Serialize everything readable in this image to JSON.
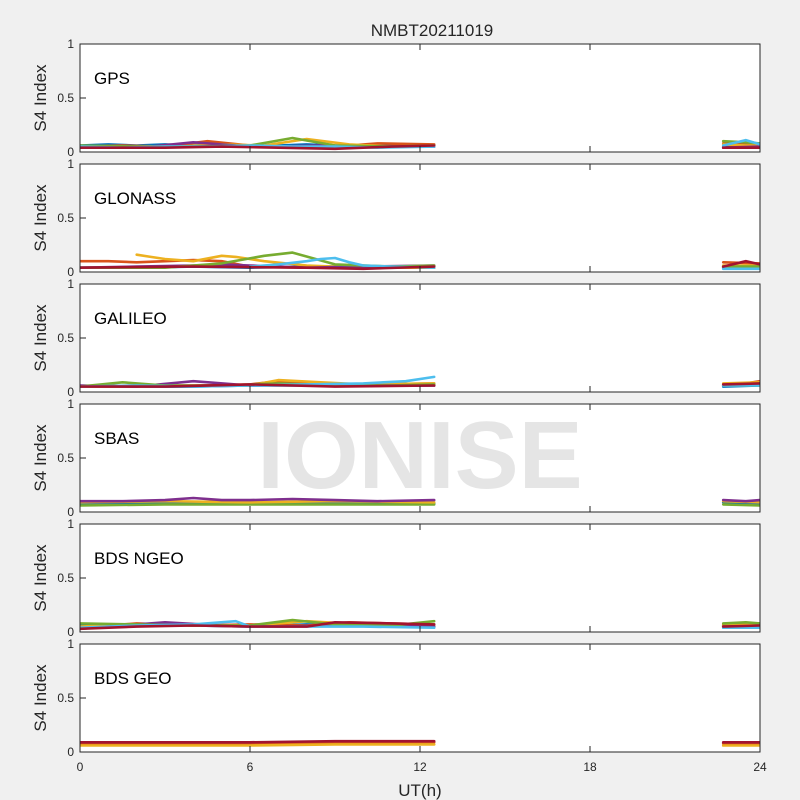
{
  "chart_data": {
    "type": "line",
    "title": "NMBT20211019",
    "xlabel": "UT(h)",
    "ylabel": "S4 Index",
    "xlim": [
      0,
      24
    ],
    "ylim": [
      0,
      1
    ],
    "xticks": [
      "0",
      "6",
      "12",
      "18",
      "24"
    ],
    "yticks": [
      "0",
      "0.5",
      "1"
    ],
    "watermark": "IONISE",
    "data_gap_hours": [
      12.5,
      22.7
    ],
    "panels": [
      {
        "label": "GPS",
        "series": [
          {
            "color": "#0072BD",
            "x": [
              0,
              1,
              2,
              3,
              4,
              5,
              6,
              7,
              8,
              9,
              10,
              11,
              12.5,
              22.7,
              23.5,
              24
            ],
            "y": [
              0.06,
              0.07,
              0.06,
              0.07,
              0.06,
              0.07,
              0.05,
              0.06,
              0.07,
              0.06,
              0.06,
              0.07,
              0.06,
              0.05,
              0.06,
              0.05
            ]
          },
          {
            "color": "#D95319",
            "x": [
              0,
              1.5,
              3,
              4.5,
              6,
              7.5,
              9,
              10.5,
              12.5,
              22.7,
              23.5,
              24
            ],
            "y": [
              0.05,
              0.06,
              0.05,
              0.1,
              0.06,
              0.05,
              0.05,
              0.08,
              0.07,
              0.08,
              0.07,
              0.06
            ]
          },
          {
            "color": "#EDB120",
            "x": [
              0,
              2,
              3.5,
              5,
              6.5,
              8,
              9.5,
              11,
              12.5,
              22.7,
              23.5,
              24
            ],
            "y": [
              0.04,
              0.05,
              0.05,
              0.07,
              0.06,
              0.12,
              0.07,
              0.05,
              0.06,
              0.07,
              0.06,
              0.06
            ]
          },
          {
            "color": "#7E2F8E",
            "x": [
              0,
              2.5,
              4,
              5.5,
              7,
              8.5,
              10,
              12.5,
              22.7,
              24
            ],
            "y": [
              0.05,
              0.05,
              0.09,
              0.06,
              0.05,
              0.06,
              0.05,
              0.05,
              0.04,
              0.05
            ]
          },
          {
            "color": "#77AC30",
            "x": [
              0,
              2,
              4,
              6,
              7.5,
              9,
              11,
              12.5,
              22.7,
              23.5,
              24
            ],
            "y": [
              0.06,
              0.05,
              0.05,
              0.06,
              0.13,
              0.06,
              0.05,
              0.06,
              0.1,
              0.09,
              0.08
            ]
          },
          {
            "color": "#4DBEEE",
            "x": [
              0,
              1.5,
              3,
              4.5,
              6,
              7.5,
              9,
              10.5,
              12.5,
              22.7,
              23.5,
              24
            ],
            "y": [
              0.05,
              0.04,
              0.05,
              0.05,
              0.06,
              0.05,
              0.05,
              0.04,
              0.05,
              0.06,
              0.11,
              0.07
            ]
          },
          {
            "color": "#A2142F",
            "x": [
              0,
              3,
              5,
              7,
              9,
              11,
              12.5,
              22.7,
              24
            ],
            "y": [
              0.04,
              0.04,
              0.05,
              0.04,
              0.03,
              0.05,
              0.06,
              0.04,
              0.04
            ]
          }
        ]
      },
      {
        "label": "GLONASS",
        "series": [
          {
            "color": "#0072BD",
            "x": [
              0,
              2,
              4,
              6,
              8,
              10,
              12.5,
              22.7,
              24
            ],
            "y": [
              0.04,
              0.04,
              0.05,
              0.04,
              0.05,
              0.05,
              0.04,
              0.04,
              0.05
            ]
          },
          {
            "color": "#D95319",
            "x": [
              0,
              1,
              2,
              3,
              4,
              5,
              6,
              8,
              10,
              12.5,
              22.7,
              24
            ],
            "y": [
              0.1,
              0.1,
              0.09,
              0.1,
              0.11,
              0.1,
              0.05,
              0.04,
              0.04,
              0.05,
              0.09,
              0.08
            ]
          },
          {
            "color": "#EDB120",
            "x": [
              2,
              2.5,
              3,
              4,
              5,
              5.5,
              6.5,
              8,
              10,
              12.5,
              22.7,
              24
            ],
            "y": [
              0.16,
              0.14,
              0.12,
              0.1,
              0.15,
              0.14,
              0.1,
              0.06,
              0.04,
              0.04,
              0.06,
              0.06
            ]
          },
          {
            "color": "#7E2F8E",
            "x": [
              0,
              2,
              4,
              5,
              6,
              8,
              10,
              12.5,
              22.7,
              24
            ],
            "y": [
              0.04,
              0.05,
              0.06,
              0.07,
              0.06,
              0.04,
              0.05,
              0.06,
              0.04,
              0.05
            ]
          },
          {
            "color": "#77AC30",
            "x": [
              0,
              3,
              5,
              6.5,
              7.5,
              9,
              11,
              12.5,
              22.7,
              24
            ],
            "y": [
              0.04,
              0.04,
              0.08,
              0.15,
              0.18,
              0.07,
              0.05,
              0.06,
              0.05,
              0.05
            ]
          },
          {
            "color": "#4DBEEE",
            "x": [
              6,
              7,
              8,
              8.5,
              9,
              9.5,
              10,
              11,
              12.5,
              22.7,
              24
            ],
            "y": [
              0.05,
              0.07,
              0.1,
              0.12,
              0.13,
              0.09,
              0.06,
              0.05,
              0.04,
              0.03,
              0.03
            ]
          },
          {
            "color": "#A2142F",
            "x": [
              0,
              4,
              8,
              10,
              12.5,
              22.7,
              23.5,
              24
            ],
            "y": [
              0.04,
              0.05,
              0.04,
              0.03,
              0.05,
              0.05,
              0.1,
              0.07
            ]
          }
        ]
      },
      {
        "label": "GALILEO",
        "series": [
          {
            "color": "#0072BD",
            "x": [
              0,
              2,
              4,
              6,
              8,
              10,
              12.5,
              22.7,
              24
            ],
            "y": [
              0.05,
              0.05,
              0.05,
              0.06,
              0.06,
              0.06,
              0.06,
              0.05,
              0.06
            ]
          },
          {
            "color": "#D95319",
            "x": [
              0,
              2,
              4,
              6,
              7,
              8,
              10,
              12.5,
              22.7,
              23.5,
              24
            ],
            "y": [
              0.05,
              0.06,
              0.06,
              0.07,
              0.1,
              0.08,
              0.07,
              0.08,
              0.07,
              0.08,
              0.1
            ]
          },
          {
            "color": "#EDB120",
            "x": [
              0,
              2,
              4,
              6,
              7,
              8.5,
              10,
              12.5,
              22.7,
              24
            ],
            "y": [
              0.05,
              0.05,
              0.06,
              0.06,
              0.11,
              0.09,
              0.07,
              0.08,
              0.08,
              0.09
            ]
          },
          {
            "color": "#7E2F8E",
            "x": [
              0,
              2,
              4,
              6,
              8,
              10,
              12.5,
              22.7,
              24
            ],
            "y": [
              0.06,
              0.05,
              0.1,
              0.06,
              0.07,
              0.06,
              0.06,
              0.06,
              0.07
            ]
          },
          {
            "color": "#77AC30",
            "x": [
              0,
              1.5,
              3,
              5,
              7,
              9,
              11,
              12.5,
              22.7,
              24
            ],
            "y": [
              0.05,
              0.09,
              0.06,
              0.06,
              0.08,
              0.06,
              0.06,
              0.07,
              0.06,
              0.06
            ]
          },
          {
            "color": "#4DBEEE",
            "x": [
              0,
              2,
              4,
              6,
              8,
              10,
              11.5,
              12.5,
              22.7,
              24
            ],
            "y": [
              0.05,
              0.06,
              0.05,
              0.06,
              0.07,
              0.08,
              0.1,
              0.14,
              0.06,
              0.06
            ]
          },
          {
            "color": "#A2142F",
            "x": [
              0,
              3,
              6,
              9,
              12.5,
              22.7,
              24
            ],
            "y": [
              0.05,
              0.05,
              0.07,
              0.05,
              0.06,
              0.07,
              0.08
            ]
          }
        ]
      },
      {
        "label": "SBAS",
        "series": [
          {
            "color": "#0072BD",
            "x": [
              0,
              3,
              6,
              9,
              12.5,
              22.7,
              24
            ],
            "y": [
              0.08,
              0.09,
              0.08,
              0.09,
              0.08,
              0.09,
              0.08
            ]
          },
          {
            "color": "#77AC30",
            "x": [
              0,
              3,
              6,
              9,
              12.5,
              22.7,
              24
            ],
            "y": [
              0.06,
              0.07,
              0.07,
              0.07,
              0.07,
              0.07,
              0.06
            ]
          },
          {
            "color": "#EDB120",
            "x": [
              0,
              3,
              6,
              9,
              12.5,
              22.7,
              24
            ],
            "y": [
              0.09,
              0.1,
              0.09,
              0.1,
              0.09,
              0.1,
              0.09
            ]
          },
          {
            "color": "#7E2F8E",
            "x": [
              0,
              1.5,
              3,
              4,
              5,
              6,
              7.5,
              9,
              10.5,
              12.5,
              22.7,
              23.5,
              24
            ],
            "y": [
              0.1,
              0.1,
              0.11,
              0.13,
              0.11,
              0.11,
              0.12,
              0.11,
              0.1,
              0.11,
              0.11,
              0.1,
              0.11
            ]
          }
        ]
      },
      {
        "label": "BDS NGEO",
        "series": [
          {
            "color": "#0072BD",
            "x": [
              0,
              2,
              4,
              6,
              8,
              10,
              12.5,
              22.7,
              24
            ],
            "y": [
              0.06,
              0.07,
              0.06,
              0.05,
              0.07,
              0.06,
              0.05,
              0.06,
              0.06
            ]
          },
          {
            "color": "#D95319",
            "x": [
              0,
              2,
              4,
              6,
              8,
              9.5,
              11,
              12.5,
              22.7,
              24
            ],
            "y": [
              0.04,
              0.08,
              0.06,
              0.07,
              0.06,
              0.09,
              0.08,
              0.07,
              0.07,
              0.08
            ]
          },
          {
            "color": "#EDB120",
            "x": [
              0,
              2,
              4,
              6,
              8,
              10,
              12.5,
              22.7,
              24
            ],
            "y": [
              0.05,
              0.07,
              0.06,
              0.06,
              0.1,
              0.07,
              0.06,
              0.06,
              0.07
            ]
          },
          {
            "color": "#7E2F8E",
            "x": [
              0,
              1,
              3,
              5,
              7,
              9,
              11,
              12.5,
              22.7,
              24
            ],
            "y": [
              0.03,
              0.05,
              0.09,
              0.06,
              0.05,
              0.06,
              0.06,
              0.05,
              0.05,
              0.05
            ]
          },
          {
            "color": "#77AC30",
            "x": [
              0,
              2,
              4,
              6,
              7.5,
              9,
              11,
              12.5,
              22.7,
              23.5,
              24
            ],
            "y": [
              0.08,
              0.07,
              0.06,
              0.06,
              0.11,
              0.07,
              0.06,
              0.1,
              0.08,
              0.09,
              0.08
            ]
          },
          {
            "color": "#4DBEEE",
            "x": [
              0,
              2,
              4,
              5.5,
              6,
              8,
              10,
              12.5,
              22.7,
              24
            ],
            "y": [
              0.04,
              0.06,
              0.07,
              0.1,
              0.05,
              0.05,
              0.05,
              0.04,
              0.04,
              0.04
            ]
          },
          {
            "color": "#A2142F",
            "x": [
              0,
              2,
              4,
              6,
              8,
              9,
              11,
              12.5,
              22.7,
              24
            ],
            "y": [
              0.03,
              0.05,
              0.06,
              0.05,
              0.05,
              0.09,
              0.08,
              0.07,
              0.05,
              0.06
            ]
          }
        ]
      },
      {
        "label": "BDS GEO",
        "series": [
          {
            "color": "#D95319",
            "x": [
              0,
              3,
              6,
              9,
              12.5,
              22.7,
              24
            ],
            "y": [
              0.08,
              0.08,
              0.08,
              0.09,
              0.09,
              0.08,
              0.08
            ]
          },
          {
            "color": "#EDB120",
            "x": [
              0,
              3,
              6,
              9,
              12.5,
              22.7,
              24
            ],
            "y": [
              0.06,
              0.06,
              0.06,
              0.07,
              0.07,
              0.06,
              0.06
            ]
          },
          {
            "color": "#A2142F",
            "x": [
              0,
              3,
              6,
              9,
              12.5,
              22.7,
              24
            ],
            "y": [
              0.09,
              0.09,
              0.09,
              0.1,
              0.1,
              0.09,
              0.09
            ]
          }
        ]
      }
    ]
  }
}
